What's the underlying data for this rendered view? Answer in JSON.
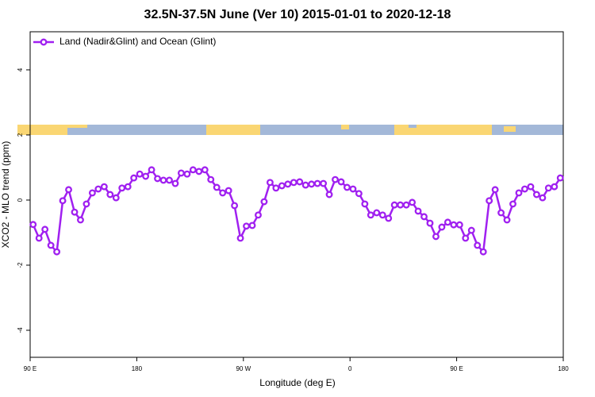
{
  "chart_data": {
    "type": "line",
    "title": "32.5N-37.5N June (Ver 10)   2015-01-01 to 2020-12-18",
    "x_label": "Longitude (deg E)",
    "y_label": "XCO2 - MLO trend (ppm)",
    "x": [
      92.5,
      97.5,
      102.5,
      107.5,
      112.5,
      117.5,
      122.5,
      127.5,
      132.5,
      137.5,
      142.5,
      147.5,
      152.5,
      157.5,
      162.5,
      167.5,
      172.5,
      177.5,
      182.5,
      187.5,
      192.5,
      197.5,
      202.5,
      207.5,
      212.5,
      217.5,
      222.5,
      227.5,
      232.5,
      237.5,
      242.5,
      247.5,
      252.5,
      257.5,
      262.5,
      267.5,
      272.5,
      277.5,
      282.5,
      287.5,
      292.5,
      297.5,
      302.5,
      307.5,
      312.5,
      317.5,
      322.5,
      327.5,
      332.5,
      337.5,
      342.5,
      347.5,
      352.5,
      357.5,
      362.5,
      367.5,
      372.5,
      377.5,
      382.5,
      387.5,
      392.5,
      397.5,
      402.5,
      407.5,
      412.5,
      417.5,
      422.5,
      427.5,
      432.5,
      437.5,
      442.5,
      447.5,
      452.5,
      457.5,
      462.5,
      467.5,
      472.5,
      477.5,
      482.5,
      487.5,
      492.5,
      497.5,
      502.5,
      507.5,
      512.5,
      517.5,
      522.5,
      527.5,
      532.5,
      537.5
    ],
    "series": [
      {
        "name": "Land (Nadir&Glint) and Ocean (Glint)",
        "color": "#a020f0",
        "values": [
          -0.75,
          -1.17,
          -0.9,
          -1.39,
          -1.59,
          -0.02,
          0.32,
          -0.37,
          -0.61,
          -0.12,
          0.22,
          0.34,
          0.41,
          0.17,
          0.07,
          0.37,
          0.41,
          0.68,
          0.8,
          0.73,
          0.93,
          0.66,
          0.61,
          0.61,
          0.51,
          0.83,
          0.8,
          0.93,
          0.88,
          0.93,
          0.63,
          0.39,
          0.22,
          0.29,
          -0.17,
          -1.17,
          -0.8,
          -0.78,
          -0.46,
          -0.05,
          0.54,
          0.37,
          0.44,
          0.49,
          0.54,
          0.56,
          0.46,
          0.49,
          0.51,
          0.51,
          0.17,
          0.63,
          0.56,
          0.39,
          0.34,
          0.2,
          -0.12,
          -0.46,
          -0.39,
          -0.46,
          -0.56,
          -0.15,
          -0.15,
          -0.15,
          -0.07,
          -0.34,
          -0.51,
          -0.71,
          -1.12,
          -0.83,
          -0.68,
          -0.76,
          -0.76,
          -1.17,
          -0.93,
          -1.39,
          -1.59,
          -0.02,
          0.32,
          -0.39,
          -0.61,
          -0.12,
          0.22,
          0.34,
          0.41,
          0.17,
          0.07,
          0.37,
          0.41,
          0.68
        ]
      }
    ],
    "xlim": [
      90,
      540
    ],
    "xticks": [
      {
        "value": 90,
        "label": "90 E"
      },
      180,
      {
        "value": 270,
        "label": "90 W"
      },
      {
        "value": 360,
        "label": "0"
      },
      {
        "value": 450,
        "label": "90 E"
      },
      {
        "value": 540,
        "label": "180"
      }
    ],
    "ylim": [
      -4.83,
      5.17
    ],
    "yticks": [
      -4,
      -2,
      0,
      2,
      4
    ],
    "legend": "top-left"
  }
}
